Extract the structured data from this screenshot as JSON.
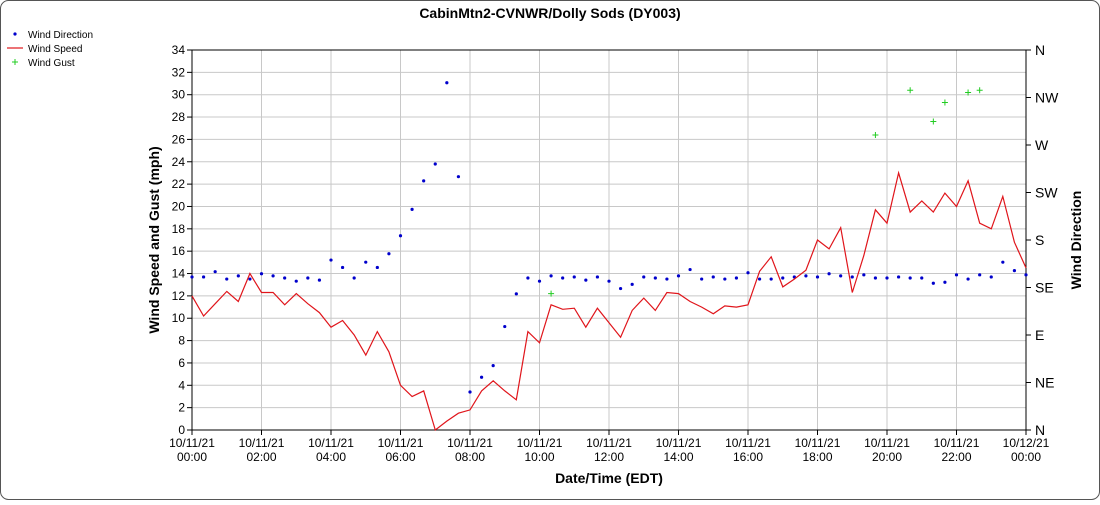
{
  "chart_data": {
    "type": "line",
    "title": "CabinMtn2-CVNWR/Dolly Sods (DY003)",
    "xlabel": "Date/Time (EDT)",
    "ylabel": "Wind Speed and Gust (mph)",
    "y2label": "Wind Direction",
    "grid": true,
    "legend": "top-left",
    "xlim": [
      "10/11/21 00:00",
      "10/12/21 00:00"
    ],
    "xticks": [
      "10/11/21 00:00",
      "10/11/21 02:00",
      "10/11/21 04:00",
      "10/11/21 06:00",
      "10/11/21 08:00",
      "10/11/21 10:00",
      "10/11/21 12:00",
      "10/11/21 14:00",
      "10/11/21 16:00",
      "10/11/21 18:00",
      "10/11/21 20:00",
      "10/11/21 22:00",
      "10/12/21 00:00"
    ],
    "ylim": [
      0,
      34
    ],
    "yticks": [
      0,
      2,
      4,
      6,
      8,
      10,
      12,
      14,
      16,
      18,
      20,
      22,
      24,
      26,
      28,
      30,
      32,
      34
    ],
    "y2lim": [
      0,
      360
    ],
    "y2ticks": [
      {
        "value": 0,
        "label": "N"
      },
      {
        "value": 45,
        "label": "NE"
      },
      {
        "value": 90,
        "label": "E"
      },
      {
        "value": 135,
        "label": "SE"
      },
      {
        "value": 180,
        "label": "S"
      },
      {
        "value": 225,
        "label": "SW"
      },
      {
        "value": 270,
        "label": "W"
      },
      {
        "value": 315,
        "label": "NW"
      },
      {
        "value": 360,
        "label": "N"
      }
    ],
    "x": [
      "10/11/21 00:00",
      "10/11/21 00:20",
      "10/11/21 00:40",
      "10/11/21 01:00",
      "10/11/21 01:20",
      "10/11/21 01:40",
      "10/11/21 02:00",
      "10/11/21 02:20",
      "10/11/21 02:40",
      "10/11/21 03:00",
      "10/11/21 03:20",
      "10/11/21 03:40",
      "10/11/21 04:00",
      "10/11/21 04:20",
      "10/11/21 04:40",
      "10/11/21 05:00",
      "10/11/21 05:20",
      "10/11/21 05:40",
      "10/11/21 06:00",
      "10/11/21 06:20",
      "10/11/21 06:40",
      "10/11/21 07:00",
      "10/11/21 07:20",
      "10/11/21 07:40",
      "10/11/21 08:00",
      "10/11/21 08:20",
      "10/11/21 08:40",
      "10/11/21 09:00",
      "10/11/21 09:20",
      "10/11/21 09:40",
      "10/11/21 10:00",
      "10/11/21 10:20",
      "10/11/21 10:40",
      "10/11/21 11:00",
      "10/11/21 11:20",
      "10/11/21 11:40",
      "10/11/21 12:00",
      "10/11/21 12:20",
      "10/11/21 12:40",
      "10/11/21 13:00",
      "10/11/21 13:20",
      "10/11/21 13:40",
      "10/11/21 14:00",
      "10/11/21 14:20",
      "10/11/21 14:40",
      "10/11/21 15:00",
      "10/11/21 15:20",
      "10/11/21 15:40",
      "10/11/21 16:00",
      "10/11/21 16:20",
      "10/11/21 16:40",
      "10/11/21 17:00",
      "10/11/21 17:20",
      "10/11/21 17:40",
      "10/11/21 18:00",
      "10/11/21 18:20",
      "10/11/21 18:40",
      "10/11/21 19:00",
      "10/11/21 19:20",
      "10/11/21 19:40",
      "10/11/21 20:00",
      "10/11/21 20:20",
      "10/11/21 20:40",
      "10/11/21 21:00",
      "10/11/21 21:20",
      "10/11/21 21:40",
      "10/11/21 22:00",
      "10/11/21 22:20",
      "10/11/21 22:40",
      "10/11/21 23:00",
      "10/11/21 23:20",
      "10/11/21 23:40",
      "10/12/21 00:00"
    ],
    "series": [
      {
        "name": "Wind Direction",
        "type": "scatter",
        "marker": "dot",
        "axis": "y2",
        "color": "#0000cc",
        "values": [
          145,
          145,
          150,
          143,
          146,
          143,
          148,
          146,
          144,
          141,
          144,
          142,
          161,
          154,
          144,
          159,
          154,
          167,
          184,
          209,
          236,
          252,
          329,
          240,
          36,
          50,
          61,
          98,
          129,
          144,
          141,
          146,
          144,
          145,
          142,
          145,
          141,
          134,
          138,
          145,
          144,
          143,
          146,
          152,
          143,
          145,
          143,
          144,
          149,
          143,
          143,
          144,
          145,
          146,
          145,
          148,
          146,
          145,
          147,
          144,
          144,
          145,
          144,
          144,
          139,
          140,
          147,
          143,
          147,
          145,
          159,
          151,
          147
        ]
      },
      {
        "name": "Wind Speed",
        "type": "line",
        "color": "#e0151b",
        "values": [
          12,
          10.2,
          11.3,
          12.4,
          11.5,
          14,
          12.3,
          12.3,
          11.2,
          12.2,
          11.3,
          10.5,
          9.2,
          9.8,
          8.5,
          6.7,
          8.8,
          7.0,
          4.0,
          3.0,
          3.5,
          0,
          0.8,
          1.5,
          1.8,
          3.5,
          4.4,
          3.5,
          2.7,
          8.8,
          7.8,
          11.2,
          10.8,
          10.9,
          9.2,
          10.9,
          9.6,
          8.3,
          10.7,
          11.8,
          10.7,
          12.3,
          12.2,
          11.5,
          11,
          10.4,
          11.1,
          11.0,
          11.2,
          14.2,
          15.5,
          12.8,
          13.5,
          14.3,
          17,
          16.2,
          18.1,
          12.3,
          15.6,
          19.7,
          18.5,
          23,
          19.5,
          20.5,
          19.5,
          21.2,
          20,
          22.3,
          18.5,
          18,
          20.9,
          16.8,
          14.5
        ]
      },
      {
        "name": "Wind Gust",
        "type": "scatter",
        "marker": "plus",
        "color": "#22cc22",
        "values": [
          null,
          null,
          null,
          null,
          null,
          null,
          null,
          null,
          null,
          null,
          null,
          null,
          null,
          null,
          null,
          null,
          null,
          null,
          null,
          null,
          null,
          null,
          null,
          null,
          null,
          null,
          null,
          null,
          null,
          null,
          null,
          12.2,
          null,
          null,
          null,
          null,
          null,
          null,
          null,
          null,
          null,
          null,
          null,
          null,
          null,
          null,
          null,
          null,
          null,
          null,
          null,
          null,
          null,
          null,
          null,
          null,
          null,
          null,
          null,
          26.4,
          null,
          null,
          30.4,
          null,
          27.6,
          29.3,
          null,
          30.2,
          30.4,
          null,
          null,
          null,
          null
        ]
      }
    ]
  }
}
